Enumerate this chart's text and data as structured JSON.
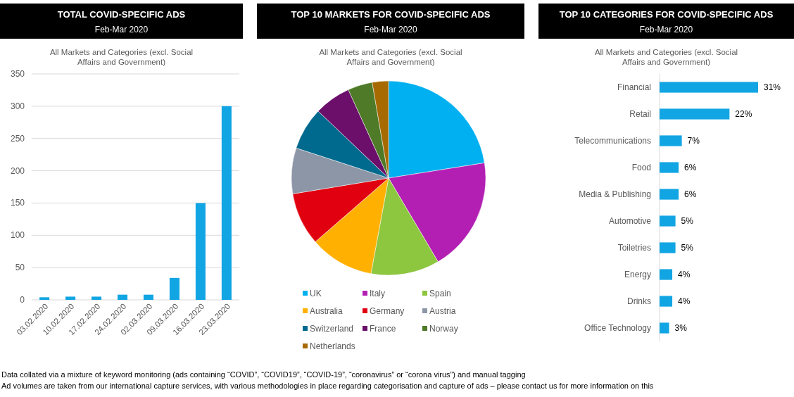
{
  "chart_data": [
    {
      "type": "bar",
      "title": "TOTAL COVID-SPECIFIC ADS",
      "subtitle": "Feb-Mar 2020",
      "annotations": [
        "All Markets and Categories (excl. Social Affairs and Government)",
        "Data collated via a mixture of keyword monitoring (ads containing “COVID”, “COVID19”, “COVID-19”, “coronavirus” or “corona virus”) and manual tagging",
        "Ad volumes are taken from our international capture services, with various methodologies in place regarding categorisation and capture of ads – please contact us for more information on this"
      ],
      "categories": [
        "03.02.2020",
        "10.02.2020",
        "17.02.2020",
        "24.02.2020",
        "02.03.2020",
        "09.03.2020",
        "16.03.2020",
        "23.03.2020"
      ],
      "values": [
        4,
        5,
        5,
        8,
        8,
        34,
        150,
        300
      ],
      "color": "#12a5e3",
      "ylim": [
        0,
        350
      ],
      "yticks": [
        0,
        50,
        100,
        150,
        200,
        250,
        300,
        350
      ],
      "grid": "y"
    },
    {
      "type": "pie",
      "title": "TOP 10 MARKETS FOR COVID-SPECIFIC ADS",
      "subtitle": "Feb-Mar 2020",
      "annotations": [
        "All Markets and Categories (excl. Social Affairs and Government)"
      ],
      "categories": [
        "UK",
        "Italy",
        "Spain",
        "Australia",
        "Germany",
        "Austria",
        "Switzerland",
        "France",
        "Norway",
        "Netherlands"
      ],
      "values": [
        22.5,
        19,
        11.4,
        10.7,
        8.8,
        7.6,
        7.1,
        6.1,
        4.1,
        2.7
      ],
      "colors": [
        "#00b0f0",
        "#b31fb3",
        "#8dc63f",
        "#ffb000",
        "#e00010",
        "#8c96a6",
        "#006a8e",
        "#6b0f6b",
        "#4f7a28",
        "#a66a00"
      ],
      "legend": "bottom"
    },
    {
      "type": "bar",
      "orientation": "horizontal",
      "title": "TOP 10 CATEGORIES FOR COVID-SPECIFIC ADS",
      "subtitle": "Feb-Mar 2020",
      "annotations": [
        "All Markets and Categories (excl. Social Affairs and Government)"
      ],
      "categories": [
        "Financial",
        "Retail",
        "Telecommunications",
        "Food",
        "Media & Publishing",
        "Automotive",
        "Toiletries",
        "Energy",
        "Drinks",
        "Office Technology"
      ],
      "values": [
        31,
        22,
        7,
        6,
        6,
        5,
        5,
        4,
        4,
        3
      ],
      "value_labels": [
        "31%",
        "22%",
        "7%",
        "6%",
        "6%",
        "5%",
        "5%",
        "4%",
        "4%",
        "3%"
      ],
      "color": "#12a5e3"
    }
  ]
}
